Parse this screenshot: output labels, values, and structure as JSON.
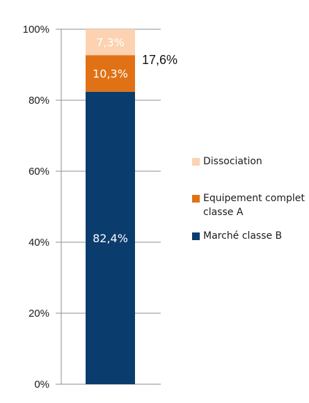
{
  "chart_data": {
    "type": "bar",
    "stacked": true,
    "categories": [
      ""
    ],
    "series": [
      {
        "name": "Marché classe B",
        "values": [
          82.4
        ],
        "color": "#0b3c6e",
        "label": "82,4%",
        "label_color": "#ffffff"
      },
      {
        "name": "Equipement complet classe A",
        "values": [
          10.3
        ],
        "color": "#e07215",
        "label": "10,3%",
        "label_color": "#ffffff"
      },
      {
        "name": "Dissociation",
        "values": [
          7.3
        ],
        "color": "#fcd2b0",
        "label": "7,3%",
        "label_color": "#ffffff"
      }
    ],
    "ylim": [
      0,
      100
    ],
    "y_ticks": [
      0,
      20,
      40,
      60,
      80,
      100
    ],
    "y_tick_labels": [
      "0%",
      "20%",
      "40%",
      "60%",
      "80%",
      "100%"
    ],
    "annotation": "17,6%",
    "legend_position": "right",
    "grid": false
  }
}
